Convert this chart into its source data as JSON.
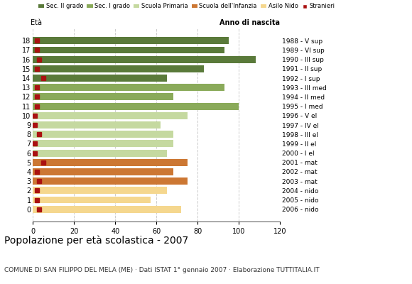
{
  "ages": [
    18,
    17,
    16,
    15,
    14,
    13,
    12,
    11,
    10,
    9,
    8,
    7,
    6,
    5,
    4,
    3,
    2,
    1,
    0
  ],
  "bar_values": [
    95,
    93,
    108,
    83,
    65,
    93,
    68,
    100,
    75,
    62,
    68,
    68,
    65,
    75,
    68,
    75,
    65,
    57,
    72
  ],
  "stranieri": [
    2,
    2,
    3,
    2,
    5,
    2,
    2,
    2,
    1,
    1,
    3,
    1,
    1,
    5,
    2,
    3,
    2,
    2,
    3
  ],
  "right_labels": [
    "1988 - V sup",
    "1989 - VI sup",
    "1990 - III sup",
    "1991 - II sup",
    "1992 - I sup",
    "1993 - III med",
    "1994 - II med",
    "1995 - I med",
    "1996 - V el",
    "1997 - IV el",
    "1998 - III el",
    "1999 - II el",
    "2000 - I el",
    "2001 - mat",
    "2002 - mat",
    "2003 - mat",
    "2004 - nido",
    "2005 - nido",
    "2006 - nido"
  ],
  "colors": {
    "Sec. II grado": "#5a7a3a",
    "Sec. I grado": "#8aaa5a",
    "Scuola Primaria": "#c5d9a0",
    "Scuola dell'Infanzia": "#cc7733",
    "Asilo Nido": "#f5d78e",
    "Stranieri": "#aa1111"
  },
  "age_to_category": {
    "18": "Sec. II grado",
    "17": "Sec. II grado",
    "16": "Sec. II grado",
    "15": "Sec. II grado",
    "14": "Sec. II grado",
    "13": "Sec. I grado",
    "12": "Sec. I grado",
    "11": "Sec. I grado",
    "10": "Scuola Primaria",
    "9": "Scuola Primaria",
    "8": "Scuola Primaria",
    "7": "Scuola Primaria",
    "6": "Scuola Primaria",
    "5": "Scuola dell'Infanzia",
    "4": "Scuola dell'Infanzia",
    "3": "Scuola dell'Infanzia",
    "2": "Asilo Nido",
    "1": "Asilo Nido",
    "0": "Asilo Nido"
  },
  "title": "Popolazione per età scolastica - 2007",
  "subtitle": "COMUNE DI SAN FILIPPO DEL MELA (ME) · Dati ISTAT 1° gennaio 2007 · Elaborazione TUTTITALIA.IT",
  "xlabel_left": "Età",
  "xlabel_right": "Anno di nascita",
  "xlim": [
    0,
    120
  ],
  "xticks": [
    0,
    20,
    40,
    60,
    80,
    100,
    120
  ],
  "background_color": "#ffffff",
  "grid_color": "#cccccc"
}
